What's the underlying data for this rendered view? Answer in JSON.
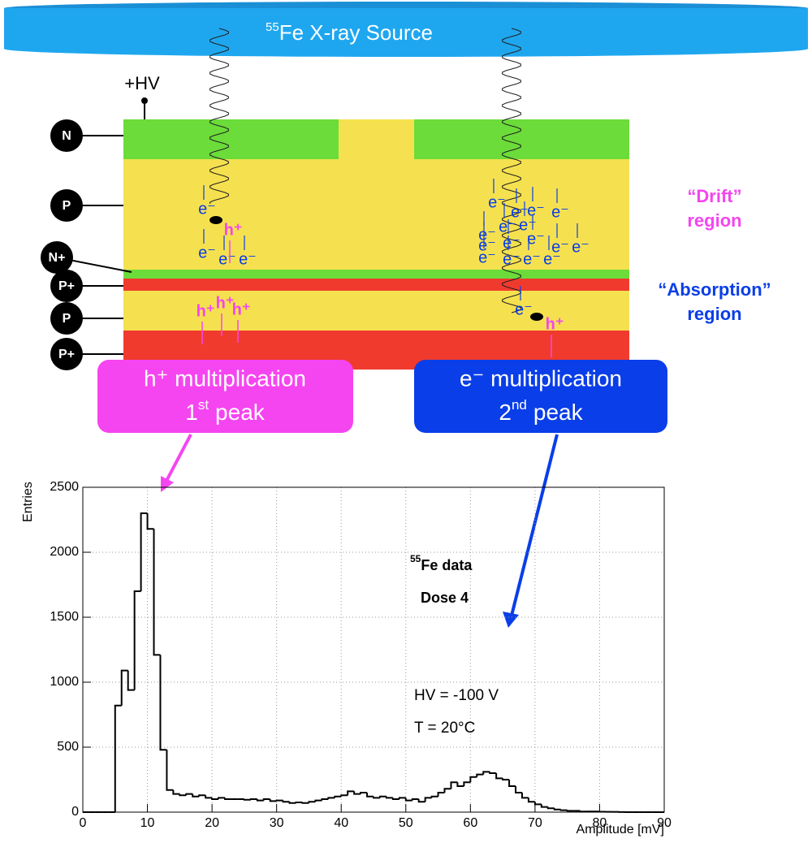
{
  "diagram": {
    "source": {
      "isotope": "55",
      "name": "Fe X-ray Source"
    },
    "hv_label": "+HV",
    "layers": [
      "N",
      "P",
      "N+",
      "P+",
      "P",
      "P+"
    ],
    "electron": "e⁻",
    "hole": "h⁺",
    "drift_region": {
      "quote": "“Drift”",
      "word": "region"
    },
    "absorption_region": {
      "quote": "“Absorption”",
      "word": "region"
    },
    "hole_box": {
      "title": "h⁺ multiplication",
      "ordinal": "1",
      "suffix": "st",
      "word": "peak"
    },
    "electron_box": {
      "title": "e⁻ multiplication",
      "ordinal": "2",
      "suffix": "nd",
      "word": "peak"
    }
  },
  "chart_data": {
    "type": "histogram",
    "x_label": "Amplitude [mV]",
    "y_label": "Entries",
    "color": "#000000",
    "grid": true,
    "bins": [
      0,
      1,
      2,
      3,
      4,
      5,
      6,
      7,
      8,
      9,
      10,
      11,
      12,
      13,
      14,
      15,
      16,
      17,
      18,
      19,
      20,
      21,
      22,
      23,
      24,
      25,
      26,
      27,
      28,
      29,
      30,
      31,
      32,
      33,
      34,
      35,
      36,
      37,
      38,
      39,
      40,
      41,
      42,
      43,
      44,
      45,
      46,
      47,
      48,
      49,
      50,
      51,
      52,
      53,
      54,
      55,
      56,
      57,
      58,
      59,
      60,
      61,
      62,
      63,
      64,
      65,
      66,
      67,
      68,
      69,
      70,
      71,
      72,
      73,
      74,
      75,
      76,
      77,
      78,
      79,
      80,
      81,
      82,
      83,
      84,
      85,
      86,
      87,
      88,
      89,
      90
    ],
    "counts": [
      0,
      0,
      0,
      0,
      0,
      820,
      1090,
      940,
      1700,
      2300,
      2180,
      1210,
      480,
      170,
      140,
      130,
      140,
      120,
      130,
      110,
      100,
      110,
      100,
      100,
      100,
      95,
      100,
      90,
      100,
      85,
      90,
      80,
      70,
      75,
      70,
      80,
      90,
      100,
      110,
      120,
      130,
      160,
      140,
      150,
      120,
      110,
      120,
      110,
      100,
      110,
      90,
      100,
      80,
      110,
      120,
      150,
      180,
      230,
      200,
      230,
      270,
      290,
      310,
      300,
      260,
      250,
      200,
      150,
      110,
      80,
      60,
      40,
      30,
      20,
      15,
      10,
      10,
      5,
      5,
      5,
      3,
      2,
      2,
      1,
      0,
      0,
      0,
      0,
      0,
      0
    ],
    "xlim": [
      0,
      90
    ],
    "ylim": [
      0,
      2500
    ],
    "xticks": [
      0,
      10,
      20,
      30,
      40,
      50,
      60,
      70,
      80,
      90
    ],
    "yticks": [
      0,
      500,
      1000,
      1500,
      2000,
      2500
    ],
    "annotations": {
      "source": {
        "isotope": "55",
        "label": "Fe data"
      },
      "dose": "Dose 4",
      "hv": "HV = -100 V",
      "temperature": "T = 20°C"
    }
  }
}
